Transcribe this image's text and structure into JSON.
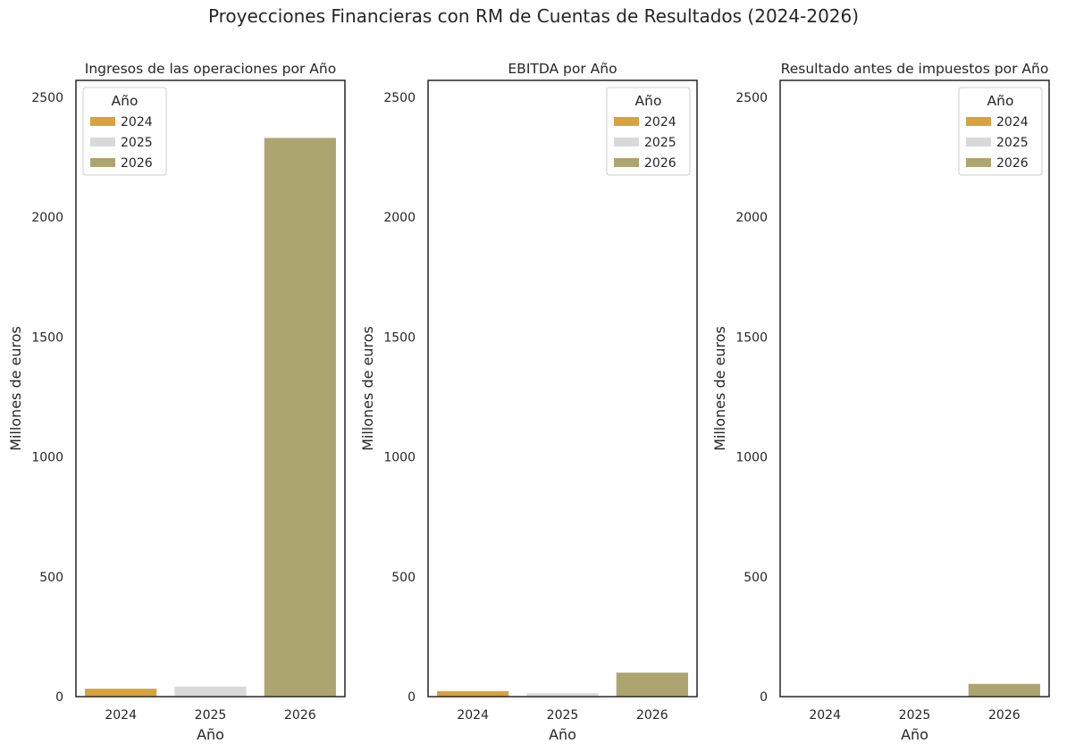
{
  "figure": {
    "title": "Proyecciones Financieras con RM de Cuentas de Resultados (2024-2026)"
  },
  "colors": {
    "2024": "#d8a33e",
    "2025": "#d9d9d9",
    "2026": "#ada570",
    "axis": "#262626"
  },
  "chart_data": [
    {
      "type": "bar",
      "title": "Ingresos de las operaciones por Año",
      "xlabel": "Año",
      "ylabel": "Millones de euros",
      "categories": [
        "2024",
        "2025",
        "2026"
      ],
      "values": [
        33,
        42,
        2330
      ],
      "ylim": [
        0,
        2570
      ],
      "yticks": [
        0,
        500,
        1000,
        1500,
        2000,
        2500
      ],
      "grid": false,
      "legend": {
        "title": "Año",
        "entries": [
          "2024",
          "2025",
          "2026"
        ],
        "position": "top-left"
      }
    },
    {
      "type": "bar",
      "title": "EBITDA por Año",
      "xlabel": "Año",
      "ylabel": "Millones de euros",
      "categories": [
        "2024",
        "2025",
        "2026"
      ],
      "values": [
        23,
        14,
        100
      ],
      "ylim": [
        0,
        2570
      ],
      "yticks": [
        0,
        500,
        1000,
        1500,
        2000,
        2500
      ],
      "grid": false,
      "legend": {
        "title": "Año",
        "entries": [
          "2024",
          "2025",
          "2026"
        ],
        "position": "top-right"
      }
    },
    {
      "type": "bar",
      "title": "Resultado antes de impuestos por Año",
      "xlabel": "Año",
      "ylabel": "Millones de euros",
      "categories": [
        "2024",
        "2025",
        "2026"
      ],
      "values": [
        1,
        1,
        53
      ],
      "ylim": [
        0,
        2570
      ],
      "yticks": [
        0,
        500,
        1000,
        1500,
        2000,
        2500
      ],
      "grid": false,
      "legend": {
        "title": "Año",
        "entries": [
          "2024",
          "2025",
          "2026"
        ],
        "position": "top-right"
      }
    }
  ]
}
